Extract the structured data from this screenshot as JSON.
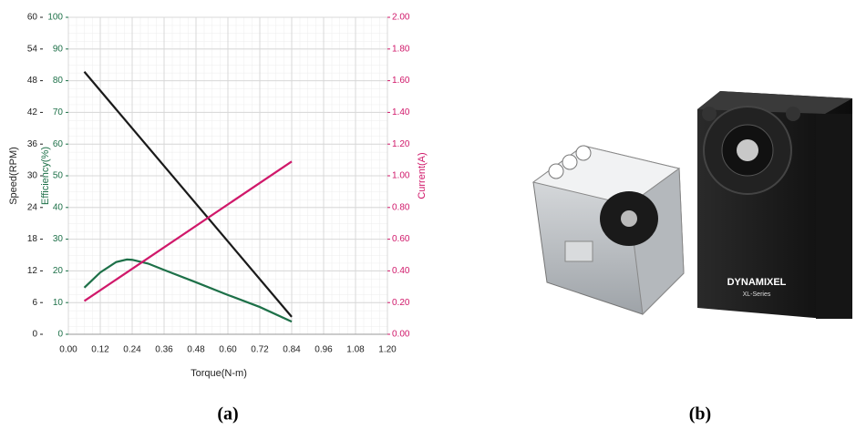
{
  "chart_data": {
    "type": "line",
    "xlabel": "Torque(N-m)",
    "ylabel": "Speed(RPM)",
    "y3label": "Efficiency(%)",
    "y2label": "Current(A)",
    "xlim": [
      0,
      1.2
    ],
    "xticks": [
      {
        "value": 0,
        "label": "0.00"
      },
      0.12,
      0.24,
      0.36,
      0.48,
      {
        "value": 0.6,
        "label": "0.60"
      },
      0.72,
      0.84,
      0.96,
      1.08,
      {
        "value": 1.2,
        "label": "1.20"
      }
    ],
    "ylim": [
      0,
      60
    ],
    "yticks": [
      0,
      6,
      12,
      18,
      24,
      30,
      36,
      42,
      48,
      54,
      60
    ],
    "ycolor": "#222222",
    "y3lim": [
      0,
      100
    ],
    "y3ticks": [
      0,
      10,
      20,
      30,
      40,
      50,
      60,
      70,
      80,
      90,
      100
    ],
    "y3color": "#1d7048",
    "y2lim": [
      0,
      2
    ],
    "y2ticks": [
      {
        "value": 0,
        "label": "0.00"
      },
      {
        "value": 0.2,
        "label": "0.20"
      },
      {
        "value": 0.4,
        "label": "0.40"
      },
      {
        "value": 0.6,
        "label": "0.60"
      },
      {
        "value": 0.8,
        "label": "0.80"
      },
      {
        "value": 1,
        "label": "1.00"
      },
      {
        "value": 1.2,
        "label": "1.20"
      },
      {
        "value": 1.4,
        "label": "1.40"
      },
      {
        "value": 1.6,
        "label": "1.60"
      },
      {
        "value": 1.8,
        "label": "1.80"
      },
      {
        "value": 2,
        "label": "2.00"
      }
    ],
    "y2color": "#d0186a",
    "grid": true,
    "series": [
      {
        "color": "#1a1a1a",
        "axis": "y",
        "x": [
          0.06,
          0.84
        ],
        "values": [
          49.7,
          3.3
        ]
      },
      {
        "color": "#1d7048",
        "axis": "y3",
        "x": [
          0.06,
          0.12,
          0.18,
          0.22,
          0.24,
          0.3,
          0.36,
          0.48,
          0.6,
          0.72,
          0.84
        ],
        "values": [
          14.7,
          19.5,
          22.8,
          23.6,
          23.5,
          22.3,
          20.3,
          16.4,
          12.4,
          8.6,
          4.0
        ]
      },
      {
        "color": "#d0186a",
        "axis": "y2",
        "x": [
          0.06,
          0.84
        ],
        "values": [
          0.21,
          1.09
        ]
      }
    ]
  },
  "captions": [
    "(a)",
    "(b)"
  ],
  "photo": {
    "brand": "DYNAMIXEL",
    "series": "XL-Series"
  }
}
